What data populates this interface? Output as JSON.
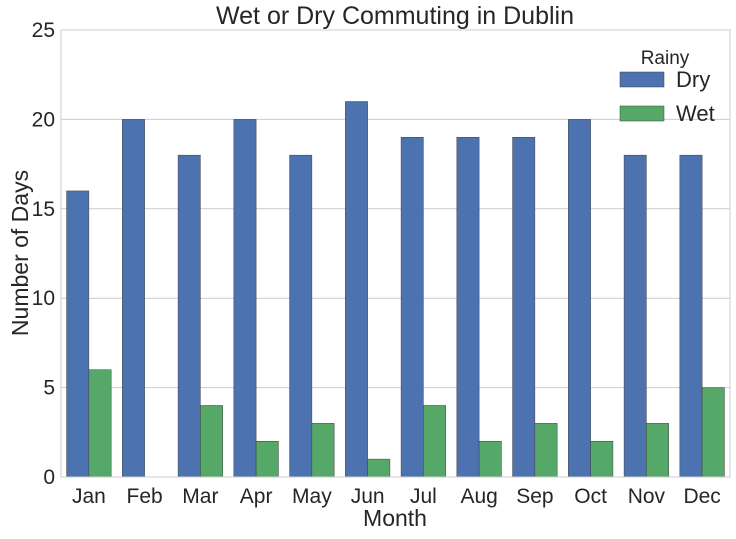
{
  "chart_data": {
    "type": "bar",
    "title": "Wet or Dry Commuting in Dublin",
    "xlabel": "Month",
    "ylabel": "Number of Days",
    "ylim": [
      0,
      25
    ],
    "yticks": [
      0,
      5,
      10,
      15,
      20,
      25
    ],
    "grid": true,
    "legend": {
      "title": "Rainy",
      "placement": "top-right"
    },
    "categories": [
      "Jan",
      "Feb",
      "Mar",
      "Apr",
      "May",
      "Jun",
      "Jul",
      "Aug",
      "Sep",
      "Oct",
      "Nov",
      "Dec"
    ],
    "series": [
      {
        "name": "Dry",
        "color": "#4c72b0",
        "values": [
          16,
          20,
          18,
          20,
          18,
          21,
          19,
          19,
          19,
          20,
          18,
          18
        ]
      },
      {
        "name": "Wet",
        "color": "#55a868",
        "values": [
          6,
          0,
          4,
          2,
          3,
          1,
          4,
          2,
          3,
          2,
          3,
          5
        ]
      }
    ]
  }
}
